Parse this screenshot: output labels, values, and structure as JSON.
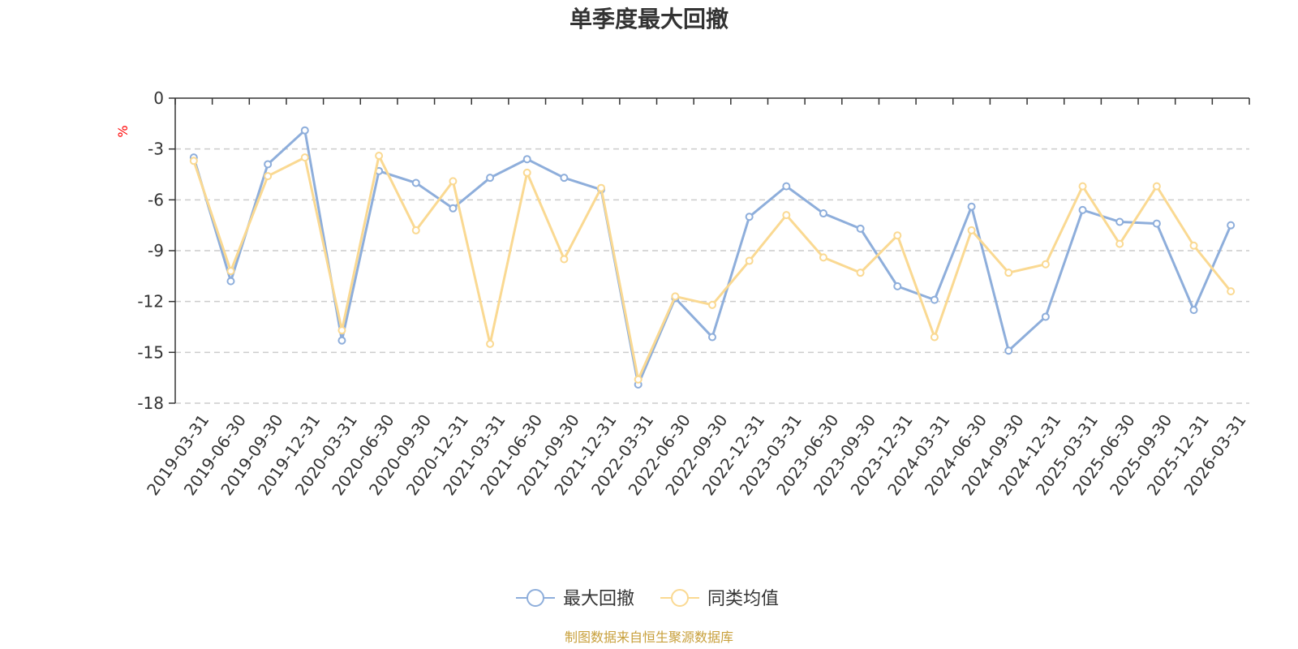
{
  "chart_data": {
    "type": "line",
    "title": "单季度最大回撤",
    "ylabel": "%",
    "xlabel": "",
    "ylim": [
      -18,
      0
    ],
    "yticks": [
      0,
      -3,
      -6,
      -9,
      -12,
      -15,
      -18
    ],
    "ytick_labels": [
      "0",
      "-3",
      "-6",
      "-9",
      "-12",
      "-15",
      "-18"
    ],
    "grid": true,
    "legend_position": "bottom-center",
    "categories": [
      "2019-03-31",
      "2019-06-30",
      "2019-09-30",
      "2019-12-31",
      "2020-03-31",
      "2020-06-30",
      "2020-09-30",
      "2020-12-31",
      "2021-03-31",
      "2021-06-30",
      "2021-09-30",
      "2021-12-31",
      "2022-03-31",
      "2022-06-30",
      "2022-09-30",
      "2022-12-31",
      "2023-03-31",
      "2023-06-30",
      "2023-09-30",
      "2023-12-31",
      "2024-03-31",
      "2024-06-30",
      "2024-09-30",
      "2024-12-31",
      "2025-03-31",
      "2025-06-30",
      "2025-09-30",
      "2025-12-31",
      "2026-03-31"
    ],
    "series": [
      {
        "name": "最大回撤",
        "color": "#8eaedb",
        "values": [
          -3.5,
          -10.8,
          -3.9,
          -1.9,
          -14.3,
          -4.3,
          -5.0,
          -6.5,
          -4.7,
          -3.6,
          -4.7,
          -5.4,
          -16.9,
          -11.8,
          -14.1,
          -7.0,
          -5.2,
          -6.8,
          -7.7,
          -11.1,
          -11.9,
          -6.4,
          -14.9,
          -12.9,
          -6.6,
          -7.3,
          -7.4,
          -12.5,
          -7.5
        ]
      },
      {
        "name": "同类均值",
        "color": "#fad992",
        "values": [
          -3.7,
          -10.2,
          -4.6,
          -3.5,
          -13.7,
          -3.4,
          -7.8,
          -4.9,
          -14.5,
          -4.4,
          -9.5,
          -5.3,
          -16.6,
          -11.7,
          -12.2,
          -9.6,
          -6.9,
          -9.4,
          -10.3,
          -8.1,
          -14.1,
          -7.8,
          -10.3,
          -9.8,
          -5.2,
          -8.6,
          -5.2,
          -8.7,
          -11.4
        ]
      }
    ],
    "source": "制图数据来自恒生聚源数据库",
    "colors": {
      "axis": "#333333",
      "grid": "#cccccc",
      "unit": "#ff0000",
      "source": "#c8a03c"
    }
  }
}
